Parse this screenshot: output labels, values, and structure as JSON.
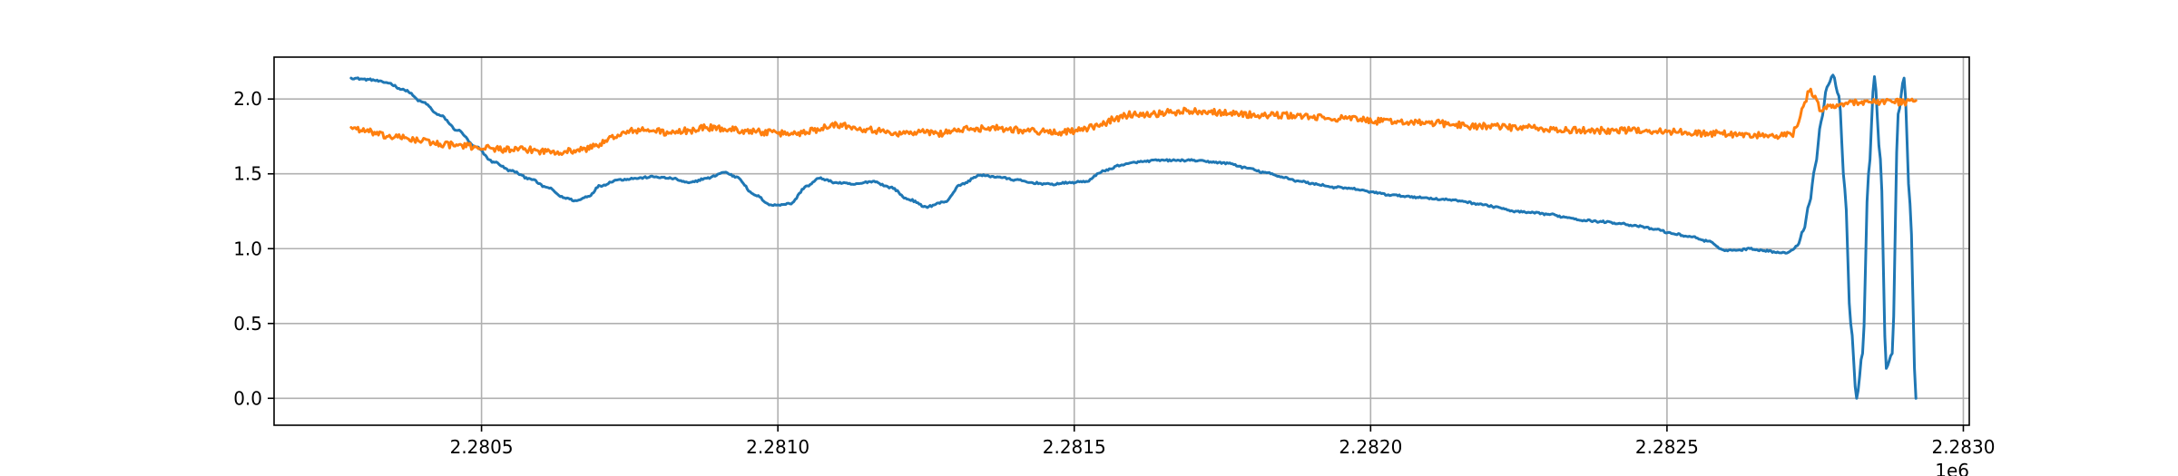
{
  "chart_data": {
    "type": "line",
    "title": "",
    "xlabel": "",
    "ylabel": "",
    "x_offset_label": "1e6",
    "xlim": [
      2.28015,
      2.28301
    ],
    "ylim": [
      -0.18,
      2.28
    ],
    "grid": true,
    "x_ticks": [
      {
        "value": 2.2805,
        "label": "2.2805"
      },
      {
        "value": 2.281,
        "label": "2.2810"
      },
      {
        "value": 2.2815,
        "label": "2.2815"
      },
      {
        "value": 2.282,
        "label": "2.2820"
      },
      {
        "value": 2.2825,
        "label": "2.2825"
      },
      {
        "value": 2.283,
        "label": "2.2830"
      }
    ],
    "y_ticks": [
      {
        "value": 0.0,
        "label": "0.0"
      },
      {
        "value": 0.5,
        "label": "0.5"
      },
      {
        "value": 1.0,
        "label": "1.0"
      },
      {
        "value": 1.5,
        "label": "1.5"
      },
      {
        "value": 2.0,
        "label": "2.0"
      }
    ],
    "series": [
      {
        "color": "#1f77b4",
        "noise": 0.006,
        "points": [
          [
            2.28028,
            2.14
          ],
          [
            2.28031,
            2.13
          ],
          [
            2.28034,
            2.11
          ],
          [
            2.28037,
            2.06
          ],
          [
            2.2804,
            1.98
          ],
          [
            2.28043,
            1.89
          ],
          [
            2.28046,
            1.79
          ],
          [
            2.28049,
            1.68
          ],
          [
            2.28052,
            1.58
          ],
          [
            2.28055,
            1.52
          ],
          [
            2.28058,
            1.47
          ],
          [
            2.28061,
            1.41
          ],
          [
            2.28064,
            1.34
          ],
          [
            2.28066,
            1.32
          ],
          [
            2.28068,
            1.35
          ],
          [
            2.2807,
            1.42
          ],
          [
            2.28073,
            1.46
          ],
          [
            2.28076,
            1.47
          ],
          [
            2.28079,
            1.48
          ],
          [
            2.28082,
            1.47
          ],
          [
            2.28085,
            1.44
          ],
          [
            2.28088,
            1.47
          ],
          [
            2.28091,
            1.51
          ],
          [
            2.28093,
            1.48
          ],
          [
            2.28096,
            1.36
          ],
          [
            2.28099,
            1.29
          ],
          [
            2.28102,
            1.3
          ],
          [
            2.28105,
            1.42
          ],
          [
            2.28107,
            1.47
          ],
          [
            2.2811,
            1.44
          ],
          [
            2.28113,
            1.43
          ],
          [
            2.28116,
            1.45
          ],
          [
            2.28119,
            1.41
          ],
          [
            2.28122,
            1.33
          ],
          [
            2.28125,
            1.28
          ],
          [
            2.28128,
            1.31
          ],
          [
            2.28131,
            1.43
          ],
          [
            2.28134,
            1.49
          ],
          [
            2.28137,
            1.48
          ],
          [
            2.2814,
            1.46
          ],
          [
            2.28143,
            1.44
          ],
          [
            2.28146,
            1.43
          ],
          [
            2.28149,
            1.44
          ],
          [
            2.28152,
            1.45
          ],
          [
            2.28155,
            1.52
          ],
          [
            2.28158,
            1.56
          ],
          [
            2.28161,
            1.58
          ],
          [
            2.28164,
            1.59
          ],
          [
            2.28167,
            1.59
          ],
          [
            2.2817,
            1.59
          ],
          [
            2.28173,
            1.58
          ],
          [
            2.28176,
            1.57
          ],
          [
            2.28179,
            1.54
          ],
          [
            2.28182,
            1.51
          ],
          [
            2.28185,
            1.48
          ],
          [
            2.28188,
            1.45
          ],
          [
            2.28191,
            1.43
          ],
          [
            2.28194,
            1.41
          ],
          [
            2.28197,
            1.4
          ],
          [
            2.282,
            1.38
          ],
          [
            2.28203,
            1.36
          ],
          [
            2.28206,
            1.35
          ],
          [
            2.28209,
            1.34
          ],
          [
            2.28212,
            1.33
          ],
          [
            2.28215,
            1.32
          ],
          [
            2.28218,
            1.3
          ],
          [
            2.28221,
            1.28
          ],
          [
            2.28224,
            1.25
          ],
          [
            2.28227,
            1.24
          ],
          [
            2.2823,
            1.23
          ],
          [
            2.28233,
            1.21
          ],
          [
            2.28236,
            1.19
          ],
          [
            2.28239,
            1.18
          ],
          [
            2.28242,
            1.17
          ],
          [
            2.28245,
            1.15
          ],
          [
            2.28248,
            1.13
          ],
          [
            2.28251,
            1.1
          ],
          [
            2.28254,
            1.08
          ],
          [
            2.28257,
            1.05
          ],
          [
            2.28259,
            1.0
          ],
          [
            2.2826,
            0.99
          ],
          [
            2.28262,
            0.99
          ],
          [
            2.28264,
            1.0
          ],
          [
            2.28266,
            0.99
          ],
          [
            2.28268,
            0.98
          ],
          [
            2.2827,
            0.97
          ],
          [
            2.28271,
            0.99
          ],
          [
            2.28272,
            1.02
          ],
          [
            2.28273,
            1.12
          ],
          [
            2.28274,
            1.3
          ],
          [
            2.28275,
            1.55
          ],
          [
            2.28276,
            1.85
          ],
          [
            2.28277,
            2.08
          ],
          [
            2.28278,
            2.16
          ],
          [
            2.28279,
            2.02
          ],
          [
            2.2828,
            1.4
          ],
          [
            2.28281,
            0.5
          ],
          [
            2.28282,
            0.0
          ],
          [
            2.28283,
            0.3
          ],
          [
            2.28284,
            1.5
          ],
          [
            2.28285,
            2.15
          ],
          [
            2.28286,
            1.6
          ],
          [
            2.28287,
            0.2
          ],
          [
            2.28288,
            0.3
          ],
          [
            2.28289,
            1.9
          ],
          [
            2.2829,
            2.14
          ],
          [
            2.28291,
            1.3
          ],
          [
            2.28292,
            0.0
          ]
        ]
      },
      {
        "color": "#ff7f0e",
        "noise": 0.022,
        "points": [
          [
            2.28028,
            1.81
          ],
          [
            2.28031,
            1.78
          ],
          [
            2.28034,
            1.75
          ],
          [
            2.28037,
            1.74
          ],
          [
            2.2804,
            1.72
          ],
          [
            2.28043,
            1.7
          ],
          [
            2.28046,
            1.69
          ],
          [
            2.28049,
            1.68
          ],
          [
            2.28052,
            1.67
          ],
          [
            2.28055,
            1.66
          ],
          [
            2.28058,
            1.66
          ],
          [
            2.28061,
            1.65
          ],
          [
            2.28064,
            1.65
          ],
          [
            2.28067,
            1.66
          ],
          [
            2.2807,
            1.7
          ],
          [
            2.28073,
            1.76
          ],
          [
            2.28076,
            1.79
          ],
          [
            2.28079,
            1.79
          ],
          [
            2.28082,
            1.77
          ],
          [
            2.28085,
            1.79
          ],
          [
            2.28088,
            1.81
          ],
          [
            2.28091,
            1.8
          ],
          [
            2.28094,
            1.79
          ],
          [
            2.28097,
            1.78
          ],
          [
            2.281,
            1.77
          ],
          [
            2.28103,
            1.77
          ],
          [
            2.28106,
            1.79
          ],
          [
            2.28109,
            1.83
          ],
          [
            2.28112,
            1.82
          ],
          [
            2.28115,
            1.8
          ],
          [
            2.28118,
            1.78
          ],
          [
            2.28121,
            1.77
          ],
          [
            2.28124,
            1.78
          ],
          [
            2.28127,
            1.77
          ],
          [
            2.2813,
            1.79
          ],
          [
            2.28133,
            1.8
          ],
          [
            2.28136,
            1.81
          ],
          [
            2.28139,
            1.8
          ],
          [
            2.28142,
            1.79
          ],
          [
            2.28145,
            1.78
          ],
          [
            2.28148,
            1.78
          ],
          [
            2.28151,
            1.79
          ],
          [
            2.28154,
            1.82
          ],
          [
            2.28157,
            1.87
          ],
          [
            2.2816,
            1.9
          ],
          [
            2.28163,
            1.9
          ],
          [
            2.28166,
            1.91
          ],
          [
            2.28169,
            1.92
          ],
          [
            2.28172,
            1.92
          ],
          [
            2.28175,
            1.91
          ],
          [
            2.28178,
            1.9
          ],
          [
            2.28181,
            1.89
          ],
          [
            2.28184,
            1.89
          ],
          [
            2.28187,
            1.89
          ],
          [
            2.2819,
            1.88
          ],
          [
            2.28193,
            1.87
          ],
          [
            2.28196,
            1.87
          ],
          [
            2.28199,
            1.86
          ],
          [
            2.28202,
            1.85
          ],
          [
            2.28205,
            1.85
          ],
          [
            2.28208,
            1.84
          ],
          [
            2.28211,
            1.84
          ],
          [
            2.28214,
            1.83
          ],
          [
            2.28217,
            1.82
          ],
          [
            2.2822,
            1.82
          ],
          [
            2.28223,
            1.81
          ],
          [
            2.28226,
            1.81
          ],
          [
            2.28229,
            1.8
          ],
          [
            2.28232,
            1.79
          ],
          [
            2.28235,
            1.79
          ],
          [
            2.28238,
            1.79
          ],
          [
            2.28241,
            1.79
          ],
          [
            2.28244,
            1.79
          ],
          [
            2.28247,
            1.79
          ],
          [
            2.2825,
            1.78
          ],
          [
            2.28253,
            1.78
          ],
          [
            2.28256,
            1.77
          ],
          [
            2.28259,
            1.77
          ],
          [
            2.28262,
            1.76
          ],
          [
            2.28265,
            1.76
          ],
          [
            2.28268,
            1.75
          ],
          [
            2.28271,
            1.76
          ],
          [
            2.28272,
            1.82
          ],
          [
            2.28273,
            1.95
          ],
          [
            2.28274,
            2.05
          ],
          [
            2.28275,
            2.02
          ],
          [
            2.28276,
            1.92
          ],
          [
            2.28278,
            1.96
          ],
          [
            2.2828,
            1.97
          ],
          [
            2.28282,
            1.98
          ],
          [
            2.28284,
            1.98
          ],
          [
            2.28286,
            1.98
          ],
          [
            2.28288,
            1.98
          ],
          [
            2.2829,
            1.98
          ],
          [
            2.28292,
            1.99
          ]
        ]
      }
    ]
  }
}
